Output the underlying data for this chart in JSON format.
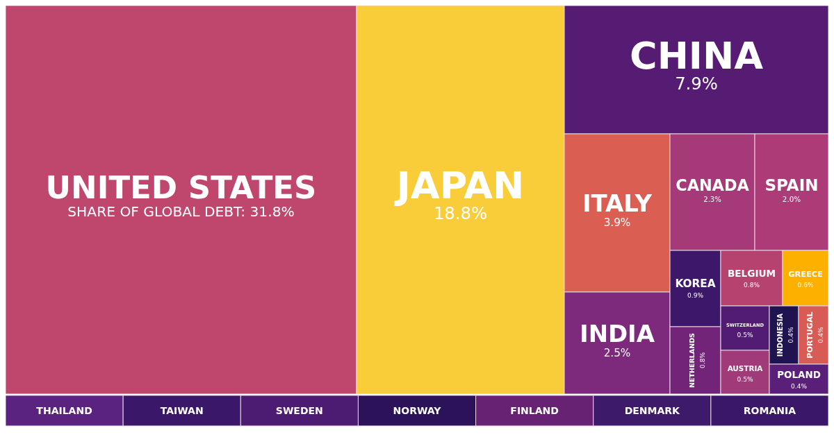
{
  "chart_data": {
    "type": "other",
    "categories": [
      "UNITED STATES",
      "JAPAN",
      "CHINA",
      "ITALY",
      "INDIA",
      "CANADA",
      "SPAIN",
      "KOREA",
      "NETHERLANDS",
      "BELGIUM",
      "GREECE",
      "SWITZERLAND",
      "AUSTRIA",
      "INDONESIA",
      "PORTUGAL",
      "POLAND",
      "THAILAND",
      "TAIWAN",
      "SWEDEN",
      "NORWAY",
      "FINLAND",
      "DENMARK",
      "ROMANIA"
    ],
    "values": [
      31.8,
      18.8,
      7.9,
      3.9,
      2.5,
      2.3,
      2.0,
      0.9,
      0.8,
      0.8,
      0.6,
      0.5,
      0.5,
      0.4,
      0.4,
      0.4,
      null,
      null,
      null,
      null,
      null,
      null,
      null
    ],
    "value_labels": [
      "SHARE OF GLOBAL DEBT: 31.8%",
      "18.8%",
      "7.9%",
      "3.9%",
      "2.5%",
      "2.3%",
      "2.0%",
      "0.9%",
      "0.8%",
      "0.8%",
      "0.6%",
      "0.5%",
      "0.5%",
      "0.4%",
      "0.4%",
      "0.4%",
      null,
      null,
      null,
      null,
      null,
      null,
      null
    ],
    "colors": [
      "#bf476e",
      "#f9cd3a",
      "#561c74",
      "#db5e53",
      "#7e2a7c",
      "#a63a78",
      "#ad3b77",
      "#3d1769",
      "#722478",
      "#b6426f",
      "#fdb000",
      "#521c74",
      "#a03a78",
      "#201450",
      "#d95b55",
      "#5a1f79",
      "#5b2380",
      "#3a1769",
      "#4b1c72",
      "#2c1259",
      "#682274",
      "#3e1a6b",
      "#3a1769"
    ]
  }
}
